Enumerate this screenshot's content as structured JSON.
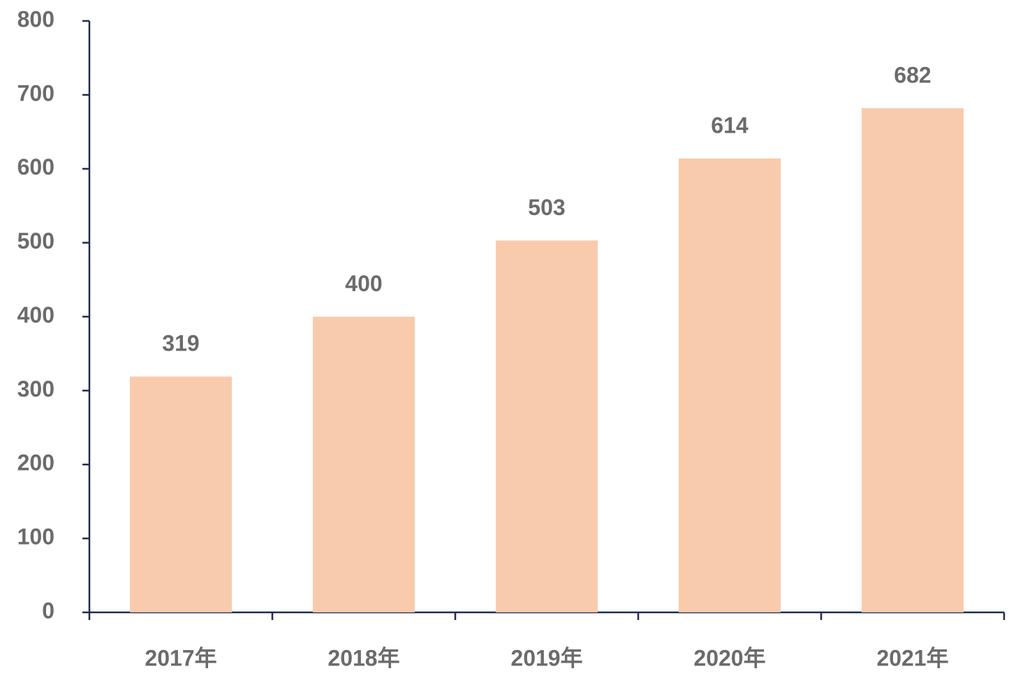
{
  "chart_data": {
    "type": "bar",
    "categories": [
      "2017年",
      "2018年",
      "2019年",
      "2020年",
      "2021年"
    ],
    "values": [
      319,
      400,
      503,
      614,
      682
    ],
    "color": "#f8cbad",
    "ylim": [
      0,
      800
    ],
    "yticks": [
      0,
      100,
      200,
      300,
      400,
      500,
      600,
      700,
      800
    ],
    "grid": false
  }
}
